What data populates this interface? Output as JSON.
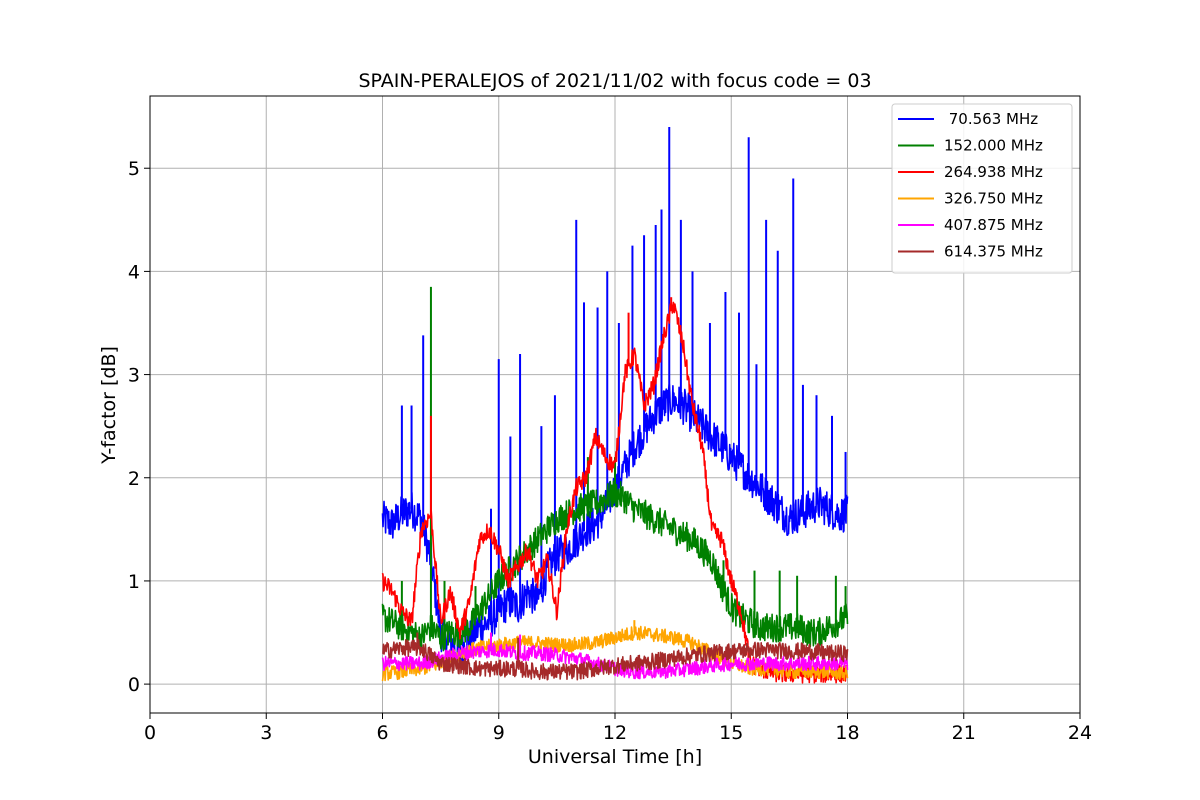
{
  "chart_data": {
    "type": "line",
    "title": "SPAIN-PERALEJOS of 2021/11/02 with focus code = 03",
    "xlabel": "Universal Time [h]",
    "ylabel": "Y-factor [dB]",
    "xlim": [
      0,
      24
    ],
    "ylim": [
      -0.28,
      5.7
    ],
    "xticks": [
      0,
      3,
      6,
      9,
      12,
      15,
      18,
      21,
      24
    ],
    "yticks": [
      0,
      1,
      2,
      3,
      4,
      5
    ],
    "grid": true,
    "legend_position": "top-right",
    "series": [
      {
        "name": " 70.563 MHz",
        "color": "#0000ff",
        "x": [
          6.0,
          6.25,
          6.5,
          6.75,
          7.0,
          7.25,
          7.5,
          7.75,
          8.0,
          8.25,
          8.5,
          8.75,
          9.0,
          9.25,
          9.5,
          9.75,
          10.0,
          10.25,
          10.5,
          10.75,
          11.0,
          11.25,
          11.5,
          11.75,
          12.0,
          12.25,
          12.5,
          12.75,
          13.0,
          13.25,
          13.5,
          13.75,
          14.0,
          14.25,
          14.5,
          14.75,
          15.0,
          15.25,
          15.5,
          15.75,
          16.0,
          16.25,
          16.5,
          16.75,
          17.0,
          17.25,
          17.5,
          17.75,
          18.0
        ],
        "y": [
          1.6,
          1.55,
          1.65,
          1.7,
          1.6,
          1.2,
          0.5,
          0.4,
          0.3,
          0.45,
          0.55,
          0.6,
          0.7,
          0.8,
          0.75,
          0.9,
          0.8,
          1.1,
          1.25,
          1.3,
          1.4,
          1.5,
          1.55,
          1.7,
          1.9,
          2.1,
          2.3,
          2.45,
          2.6,
          2.7,
          2.75,
          2.7,
          2.6,
          2.5,
          2.4,
          2.3,
          2.2,
          2.1,
          2.0,
          1.9,
          1.8,
          1.7,
          1.6,
          1.65,
          1.7,
          1.75,
          1.7,
          1.65,
          1.65
        ],
        "spikes": [
          [
            6.5,
            2.7
          ],
          [
            6.75,
            2.7
          ],
          [
            7.05,
            3.38
          ],
          [
            8.8,
            1.7
          ],
          [
            9.0,
            3.15
          ],
          [
            9.3,
            2.4
          ],
          [
            9.55,
            3.2
          ],
          [
            10.1,
            2.5
          ],
          [
            10.45,
            2.8
          ],
          [
            11.0,
            4.5
          ],
          [
            11.2,
            3.7
          ],
          [
            11.55,
            3.65
          ],
          [
            11.8,
            4.0
          ],
          [
            12.1,
            3.5
          ],
          [
            12.45,
            4.25
          ],
          [
            12.75,
            4.35
          ],
          [
            13.05,
            4.45
          ],
          [
            13.2,
            4.6
          ],
          [
            13.4,
            5.4
          ],
          [
            13.7,
            4.5
          ],
          [
            14.0,
            4.0
          ],
          [
            14.45,
            3.5
          ],
          [
            14.85,
            3.8
          ],
          [
            15.2,
            3.6
          ],
          [
            15.45,
            5.3
          ],
          [
            15.65,
            3.1
          ],
          [
            15.9,
            4.5
          ],
          [
            16.2,
            4.2
          ],
          [
            16.6,
            4.9
          ],
          [
            16.85,
            2.9
          ],
          [
            17.2,
            2.8
          ],
          [
            17.6,
            2.6
          ],
          [
            17.95,
            2.25
          ]
        ]
      },
      {
        "name": "152.000 MHz",
        "color": "#008000",
        "x": [
          6.0,
          6.25,
          6.5,
          6.75,
          7.0,
          7.25,
          7.5,
          7.75,
          8.0,
          8.25,
          8.5,
          8.75,
          9.0,
          9.25,
          9.5,
          9.75,
          10.0,
          10.25,
          10.5,
          10.75,
          11.0,
          11.25,
          11.5,
          11.75,
          12.0,
          12.25,
          12.5,
          12.75,
          13.0,
          13.25,
          13.5,
          13.75,
          14.0,
          14.25,
          14.5,
          14.75,
          15.0,
          15.25,
          15.5,
          15.75,
          16.0,
          16.25,
          16.5,
          16.75,
          17.0,
          17.25,
          17.5,
          17.75,
          18.0
        ],
        "y": [
          0.65,
          0.6,
          0.55,
          0.5,
          0.45,
          0.55,
          0.45,
          0.5,
          0.5,
          0.55,
          0.7,
          0.85,
          1.0,
          1.1,
          1.2,
          1.3,
          1.4,
          1.5,
          1.6,
          1.65,
          1.7,
          1.72,
          1.75,
          1.8,
          1.85,
          1.8,
          1.7,
          1.65,
          1.6,
          1.55,
          1.5,
          1.45,
          1.4,
          1.3,
          1.2,
          0.95,
          0.75,
          0.65,
          0.6,
          0.55,
          0.55,
          0.55,
          0.55,
          0.55,
          0.5,
          0.5,
          0.55,
          0.6,
          0.65
        ],
        "spikes": [
          [
            6.5,
            1.0
          ],
          [
            7.25,
            3.85
          ],
          [
            7.6,
            1.0
          ],
          [
            8.4,
            0.95
          ],
          [
            11.3,
            2.2
          ],
          [
            12.0,
            2.2
          ],
          [
            14.8,
            1.2
          ],
          [
            15.6,
            1.1
          ],
          [
            16.25,
            1.1
          ],
          [
            16.7,
            1.05
          ],
          [
            17.7,
            1.05
          ],
          [
            17.95,
            0.95
          ]
        ]
      },
      {
        "name": "264.938 MHz",
        "color": "#ff0000",
        "x": [
          6.0,
          6.25,
          6.5,
          6.75,
          7.0,
          7.25,
          7.5,
          7.75,
          8.0,
          8.25,
          8.5,
          8.75,
          9.0,
          9.25,
          9.5,
          9.75,
          10.0,
          10.25,
          10.5,
          10.75,
          11.0,
          11.25,
          11.5,
          11.75,
          12.0,
          12.25,
          12.5,
          12.75,
          13.0,
          13.25,
          13.5,
          13.75,
          14.0,
          14.25,
          14.5,
          14.75,
          15.0,
          15.25,
          15.5,
          15.75,
          16.0,
          16.25,
          16.5,
          16.75,
          17.0,
          17.25,
          17.5,
          17.75,
          18.0
        ],
        "y": [
          1.0,
          0.9,
          0.7,
          0.6,
          1.5,
          1.65,
          0.6,
          0.9,
          0.5,
          0.8,
          1.4,
          1.5,
          1.3,
          1.0,
          1.15,
          1.3,
          1.0,
          1.2,
          0.7,
          1.5,
          1.9,
          2.0,
          2.4,
          2.2,
          2.1,
          3.0,
          3.2,
          2.7,
          2.9,
          3.35,
          3.7,
          3.3,
          2.7,
          2.3,
          1.5,
          1.4,
          1.0,
          0.7,
          0.2,
          0.15,
          0.12,
          0.1,
          0.1,
          0.1,
          0.1,
          0.1,
          0.1,
          0.1,
          0.1
        ],
        "spikes": [
          [
            7.25,
            2.6
          ],
          [
            12.35,
            3.6
          ],
          [
            13.45,
            3.75
          ]
        ]
      },
      {
        "name": "326.750 MHz",
        "color": "#ffa500",
        "x": [
          6.0,
          6.5,
          7.0,
          7.5,
          8.0,
          8.5,
          9.0,
          9.5,
          10.0,
          10.5,
          11.0,
          11.5,
          12.0,
          12.5,
          13.0,
          13.5,
          14.0,
          14.5,
          15.0,
          15.5,
          16.0,
          16.5,
          17.0,
          17.5,
          18.0
        ],
        "y": [
          0.1,
          0.12,
          0.15,
          0.2,
          0.3,
          0.35,
          0.38,
          0.4,
          0.4,
          0.38,
          0.38,
          0.4,
          0.45,
          0.5,
          0.48,
          0.45,
          0.4,
          0.3,
          0.2,
          0.15,
          0.15,
          0.12,
          0.12,
          0.12,
          0.1
        ],
        "spikes": [
          [
            12.5,
            0.62
          ]
        ]
      },
      {
        "name": "407.875 MHz",
        "color": "#ff00ff",
        "x": [
          6.0,
          6.5,
          7.0,
          7.5,
          8.0,
          8.5,
          9.0,
          9.5,
          10.0,
          10.5,
          11.0,
          11.5,
          12.0,
          12.5,
          13.0,
          13.5,
          14.0,
          14.5,
          15.0,
          15.5,
          16.0,
          16.5,
          17.0,
          17.5,
          18.0
        ],
        "y": [
          0.2,
          0.2,
          0.2,
          0.25,
          0.3,
          0.32,
          0.33,
          0.3,
          0.3,
          0.28,
          0.25,
          0.2,
          0.15,
          0.12,
          0.12,
          0.13,
          0.15,
          0.18,
          0.2,
          0.2,
          0.2,
          0.2,
          0.2,
          0.2,
          0.2
        ],
        "spikes": [
          [
            8.8,
            0.5
          ],
          [
            9.55,
            0.48
          ]
        ]
      },
      {
        "name": "614.375 MHz",
        "color": "#a52a2a",
        "x": [
          6.0,
          6.5,
          7.0,
          7.5,
          8.0,
          8.5,
          9.0,
          9.5,
          10.0,
          10.5,
          11.0,
          11.5,
          12.0,
          12.5,
          13.0,
          13.5,
          14.0,
          14.5,
          15.0,
          15.5,
          16.0,
          16.5,
          17.0,
          17.5,
          18.0
        ],
        "y": [
          0.32,
          0.35,
          0.35,
          0.2,
          0.18,
          0.15,
          0.15,
          0.15,
          0.12,
          0.12,
          0.12,
          0.15,
          0.18,
          0.2,
          0.22,
          0.25,
          0.28,
          0.3,
          0.32,
          0.33,
          0.33,
          0.32,
          0.32,
          0.3,
          0.3
        ],
        "spikes": [
          [
            6.9,
            0.5
          ],
          [
            9.5,
            0.45
          ]
        ]
      }
    ]
  }
}
